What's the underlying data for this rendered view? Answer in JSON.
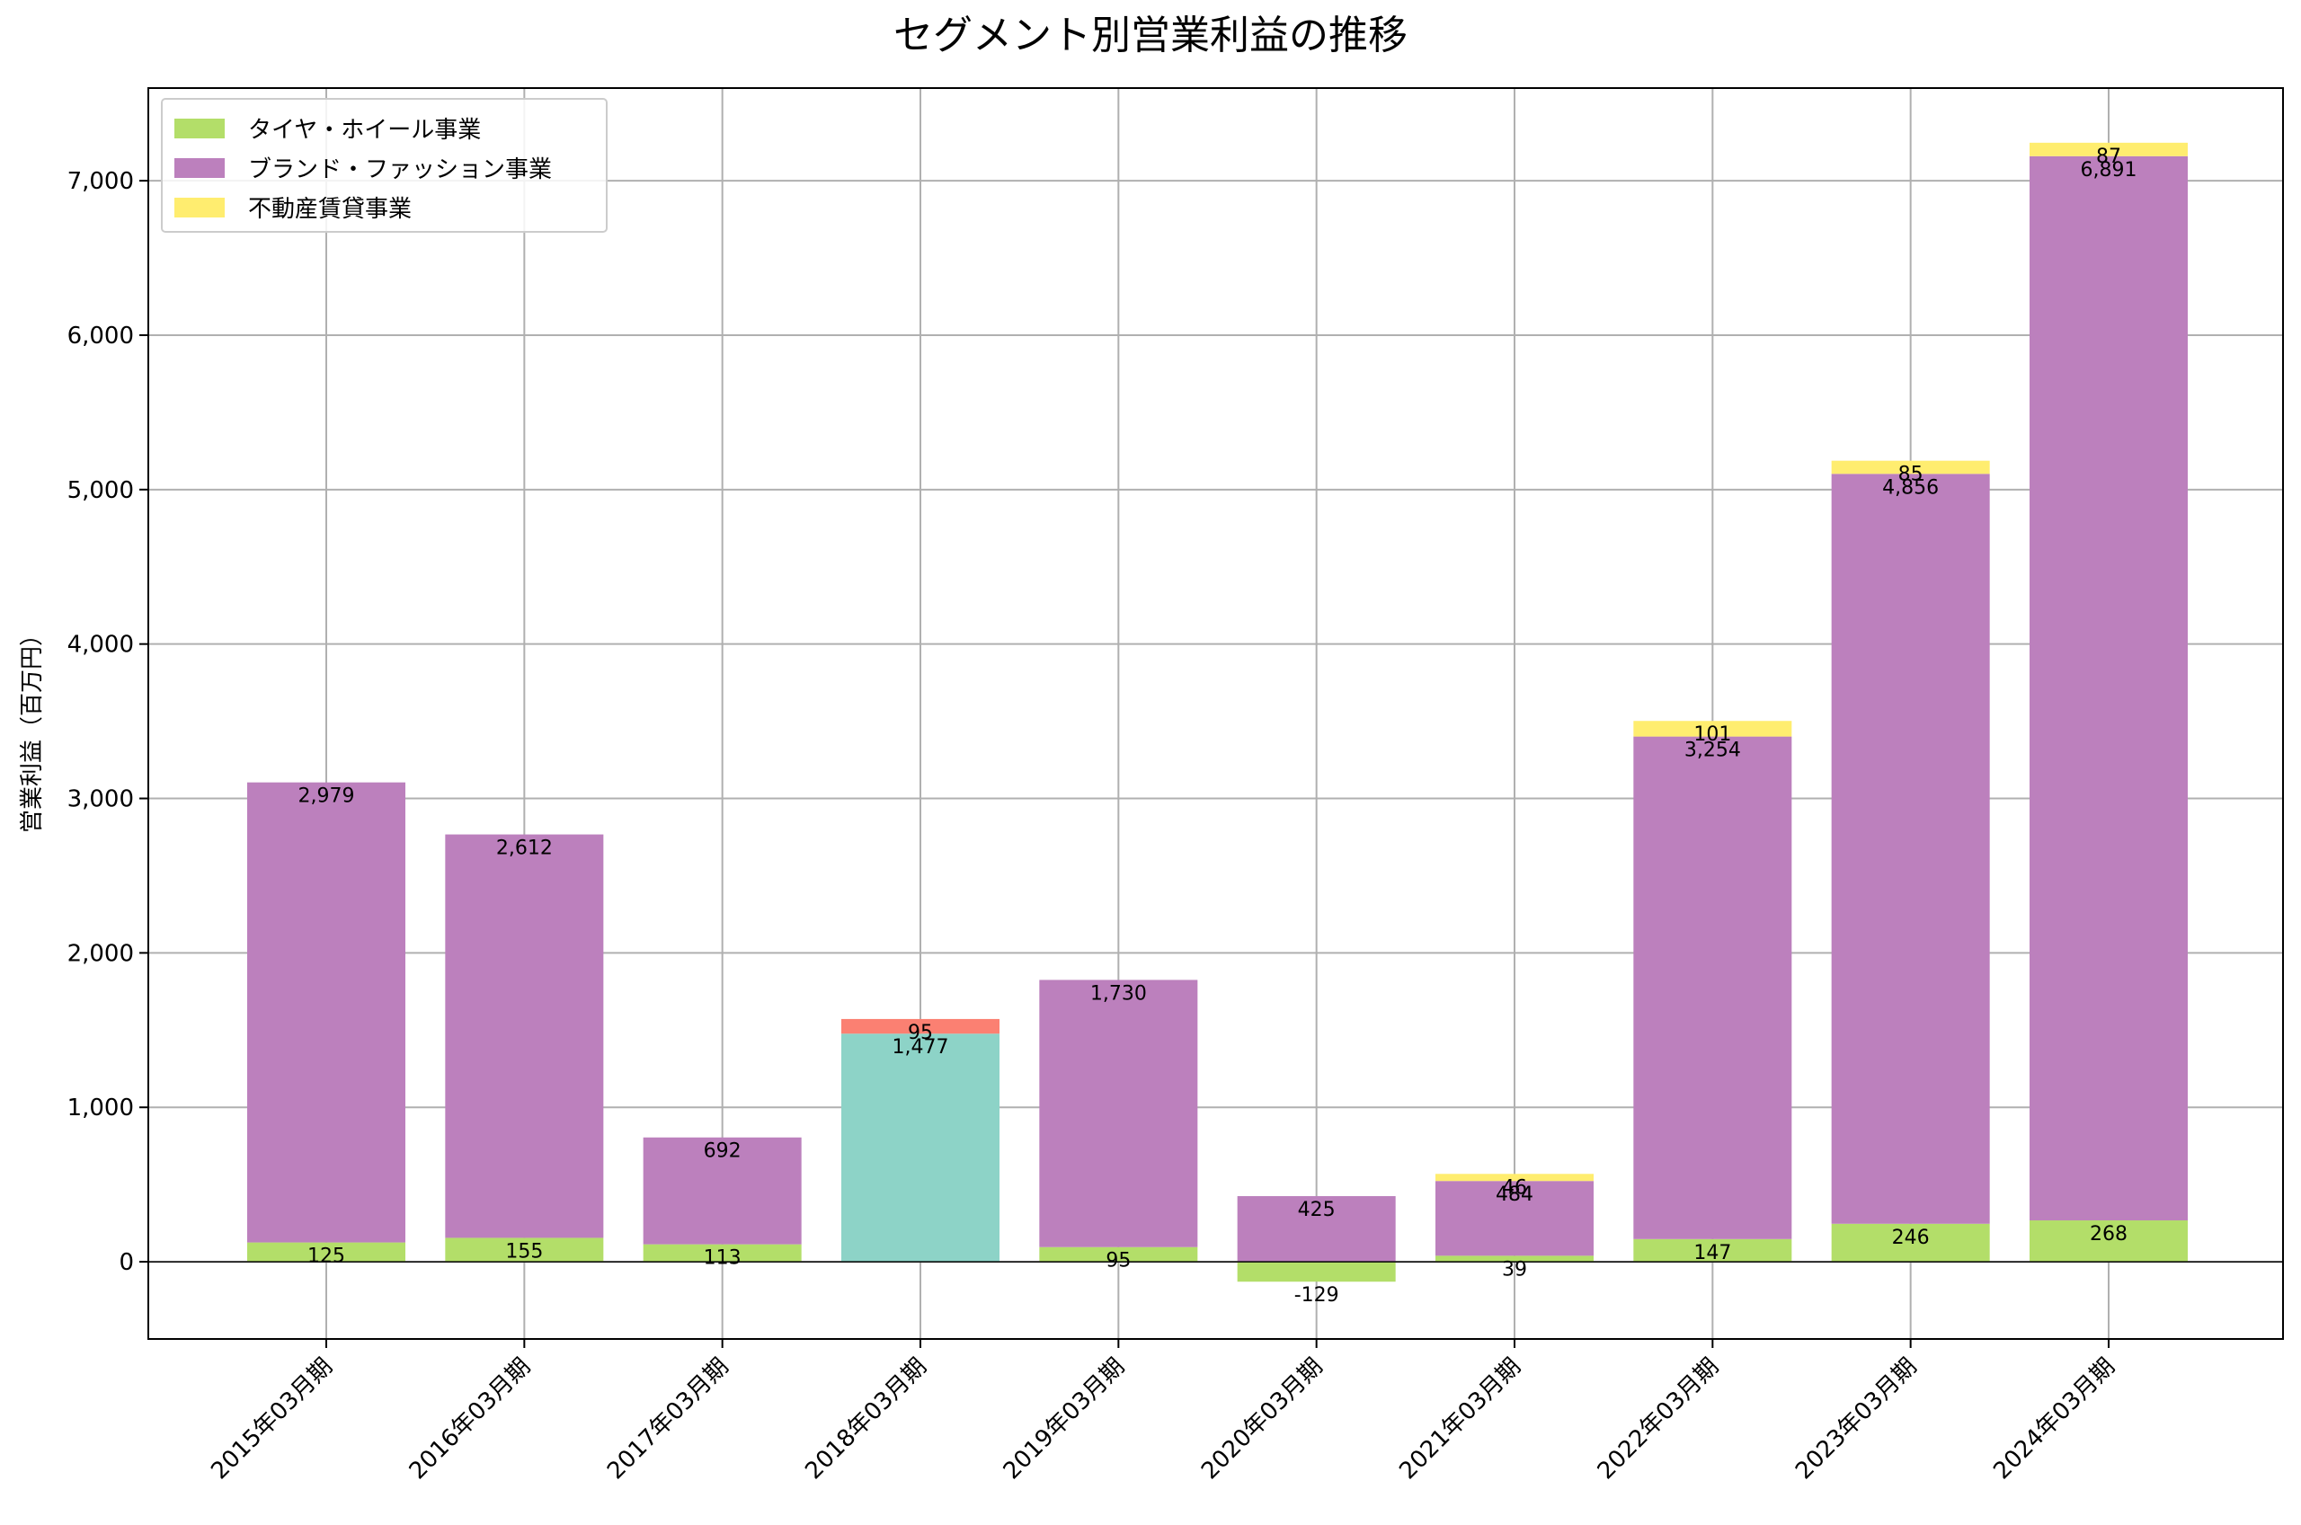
{
  "chart_data": {
    "type": "bar",
    "stacked": true,
    "title": "セグメント別営業利益の推移",
    "xlabel": "",
    "ylabel": "営業利益（百万円）",
    "ylim": [
      -500,
      7600
    ],
    "yticks": [
      0,
      1000,
      2000,
      3000,
      4000,
      5000,
      6000,
      7000
    ],
    "ytick_labels": [
      "0",
      "1,000",
      "2,000",
      "3,000",
      "4,000",
      "5,000",
      "6,000",
      "7,000"
    ],
    "grid": true,
    "legend_position": "top-left",
    "categories": [
      "2015年03月期",
      "2016年03月期",
      "2017年03月期",
      "2018年03月期",
      "2019年03月期",
      "2020年03月期",
      "2021年03月期",
      "2022年03月期",
      "2023年03月期",
      "2024年03月期"
    ],
    "series": [
      {
        "name": "タイヤ・ホイール事業",
        "color": "#b3de69",
        "values": [
          125,
          155,
          113,
          null,
          95,
          -129,
          39,
          147,
          246,
          268
        ]
      },
      {
        "name": "ブランド・ファッション事業",
        "color": "#bc80bd",
        "values": [
          2979,
          2612,
          692,
          null,
          1730,
          425,
          484,
          3254,
          4856,
          6891
        ]
      },
      {
        "name": "不動産賃貸事業",
        "color": "#ffed6f",
        "values": [
          null,
          null,
          null,
          null,
          null,
          null,
          46,
          101,
          85,
          87
        ]
      },
      {
        "name": "",
        "color": "#8dd3c7",
        "values": [
          null,
          null,
          null,
          1477,
          null,
          null,
          null,
          null,
          null,
          null
        ]
      },
      {
        "name": "",
        "color": "#fb8072",
        "values": [
          null,
          null,
          null,
          95,
          null,
          null,
          null,
          null,
          null,
          null
        ]
      }
    ]
  }
}
